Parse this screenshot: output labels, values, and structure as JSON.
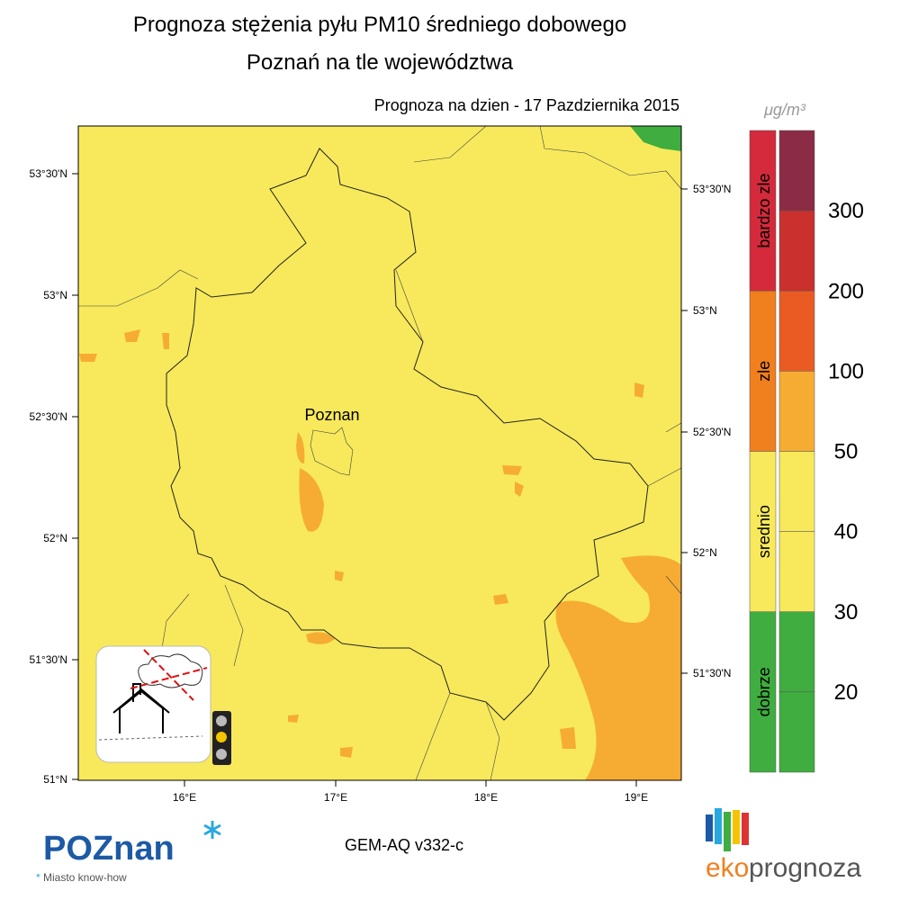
{
  "header": {
    "title": "Prognoza stężenia pyłu PM10 średniego dobowego",
    "subtitle": "Poznań na tle województwa",
    "date_line": "Prognoza na dzien -  17 Pazdziernika 2015"
  },
  "map": {
    "lat_left": [
      "53°30'N",
      "53°N",
      "52°30'N",
      "52°N",
      "51°30'N",
      "51°N"
    ],
    "lat_right": [
      "53°30'N",
      "53°N",
      "52°30'N",
      "52°N",
      "51°30'N"
    ],
    "lon_bottom": [
      "16°E",
      "17°E",
      "18°E",
      "19°E"
    ],
    "city": "Poznan"
  },
  "legend": {
    "unit": "μg/m³",
    "categories": [
      "bardzo zle",
      "zle",
      "srednio",
      "dobrze"
    ],
    "scale": [
      300,
      200,
      100,
      50,
      40,
      30,
      20
    ]
  },
  "footer": {
    "model": "GEM-AQ v332-c",
    "poznan_logo": "POZnan",
    "poznan_tagline": "Miasto know-how",
    "eko": "eko",
    "prognoza": "prognoza"
  }
}
